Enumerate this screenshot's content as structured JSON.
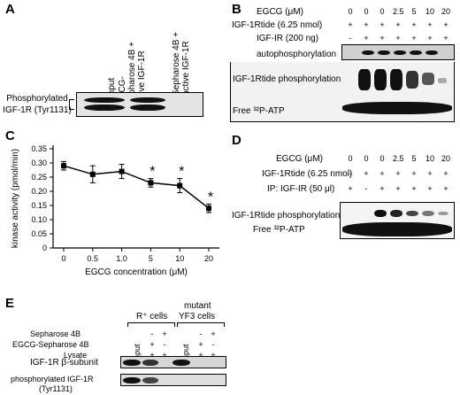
{
  "panels": {
    "A": {
      "label": "A",
      "lanes": [
        "Input",
        "EGCG-Sepharose 4B + active IGF-1R",
        "Sepharose 4B + active IGF-1R"
      ],
      "row_label": "Phosphorylated IGF-1R (Tyr1131)"
    },
    "B": {
      "label": "B",
      "row_labels": [
        "EGCG (μM)",
        "IGF-1Rtide (6.25 nmol)",
        "IGF-IR (200 ng)"
      ],
      "egcg_values": [
        "0",
        "0",
        "0",
        "2.5",
        "5",
        "10",
        "20"
      ],
      "tide_values": [
        "+",
        "+",
        "+",
        "+",
        "+",
        "+",
        "+"
      ],
      "enzyme_values": [
        "-",
        "+",
        "+",
        "+",
        "+",
        "+",
        "+"
      ],
      "band_labels": [
        "autophosphorylation",
        "IGF-1Rtide phosphorylation",
        "Free ³²P-ATP"
      ]
    },
    "C": {
      "label": "C",
      "asterisk": "*"
    },
    "D": {
      "label": "D",
      "row_labels": [
        "EGCG (μM)",
        "IGF-1Rtide (6.25 nmol)",
        "IP: IGF-IR (50 μl)"
      ],
      "egcg_values": [
        "0",
        "0",
        "0",
        "2.5",
        "5",
        "10",
        "20"
      ],
      "tide_values": [
        "-",
        "+",
        "+",
        "+",
        "+",
        "+",
        "+"
      ],
      "ip_values": [
        "+",
        "-",
        "+",
        "+",
        "+",
        "+",
        "+"
      ],
      "band_labels": [
        "IGF-1Rtide phosphorylation",
        "Free ³²P-ATP"
      ]
    },
    "E": {
      "label": "E",
      "group_labels": [
        "R⁺ cells",
        "mutant",
        "YF3 cells"
      ],
      "row_labels": [
        "Sepharose 4B",
        "EGCG-Sepharose 4B",
        "Lysate"
      ],
      "lane_input_label": "input",
      "sepharose_values": [
        "-",
        "+",
        "-",
        "+"
      ],
      "egcg_seph_values": [
        "+",
        "-",
        "+",
        "-"
      ],
      "lysate_values": [
        "+",
        "+",
        "+",
        "+"
      ],
      "blot_labels": [
        "IGF-1R β-subunit",
        "phosphorylated IGF-1R",
        "(Tyr1131)"
      ]
    }
  },
  "chart_data": {
    "type": "line",
    "categories": [
      "0",
      "0.5",
      "1.0",
      "5",
      "10",
      "20"
    ],
    "values": [
      0.29,
      0.26,
      0.27,
      0.23,
      0.22,
      0.14
    ],
    "errors": [
      0.015,
      0.03,
      0.025,
      0.015,
      0.025,
      0.015
    ],
    "significant": [
      false,
      false,
      false,
      true,
      true,
      true
    ],
    "xlabel": "EGCG concentration (μM)",
    "ylabel": "kinase activity (pmol/min)",
    "ylim": [
      0,
      0.35
    ],
    "yticks": [
      "0",
      "0.05",
      "0.10",
      "0.15",
      "0.20",
      "0.25",
      "0.30",
      "0.35"
    ],
    "grid": false
  }
}
